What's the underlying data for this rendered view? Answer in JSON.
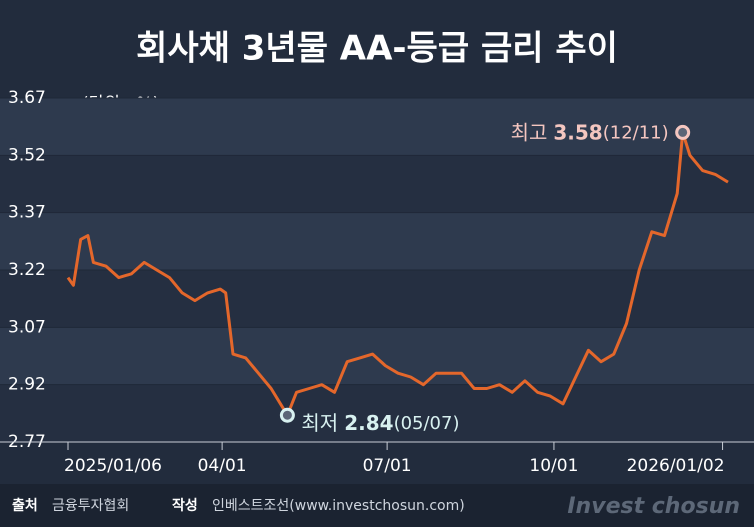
{
  "chart_data": {
    "type": "line",
    "title": "회사채 3년물 AA-등급 금리 추이",
    "unit": "(단위 : %)",
    "x": [
      "2025-01-06",
      "2025-01-09",
      "2025-01-13",
      "2025-01-17",
      "2025-01-20",
      "2025-01-27",
      "2025-02-03",
      "2025-02-10",
      "2025-02-17",
      "2025-02-24",
      "2025-03-03",
      "2025-03-10",
      "2025-03-17",
      "2025-03-24",
      "2025-03-31",
      "2025-04-03",
      "2025-04-07",
      "2025-04-14",
      "2025-04-21",
      "2025-04-28",
      "2025-05-07",
      "2025-05-12",
      "2025-05-19",
      "2025-05-26",
      "2025-06-02",
      "2025-06-09",
      "2025-06-16",
      "2025-06-23",
      "2025-06-30",
      "2025-07-07",
      "2025-07-14",
      "2025-07-21",
      "2025-07-28",
      "2025-08-04",
      "2025-08-11",
      "2025-08-18",
      "2025-08-25",
      "2025-09-01",
      "2025-09-08",
      "2025-09-15",
      "2025-09-22",
      "2025-09-29",
      "2025-10-06",
      "2025-10-13",
      "2025-10-20",
      "2025-10-27",
      "2025-11-03",
      "2025-11-10",
      "2025-11-17",
      "2025-11-24",
      "2025-12-01",
      "2025-12-08",
      "2025-12-11",
      "2025-12-15",
      "2025-12-22",
      "2025-12-29",
      "2026-01-05"
    ],
    "series": [
      {
        "name": "회사채 3년물 AA-",
        "color": "#e4672b",
        "values": [
          3.2,
          3.18,
          3.3,
          3.31,
          3.24,
          3.23,
          3.2,
          3.21,
          3.24,
          3.22,
          3.2,
          3.16,
          3.14,
          3.16,
          3.17,
          3.16,
          3.0,
          2.99,
          2.95,
          2.91,
          2.84,
          2.9,
          2.91,
          2.92,
          2.9,
          2.98,
          2.99,
          3.0,
          2.97,
          2.95,
          2.94,
          2.92,
          2.95,
          2.95,
          2.95,
          2.91,
          2.91,
          2.92,
          2.9,
          2.93,
          2.9,
          2.89,
          2.87,
          2.94,
          3.01,
          2.98,
          3.0,
          3.08,
          3.22,
          3.32,
          3.31,
          3.42,
          3.58,
          3.52,
          3.48,
          3.47,
          3.45
        ]
      }
    ],
    "xlim": [
      "2025-01-06",
      "2026-01-05"
    ],
    "xticks": [
      {
        "value": "2025-01-06",
        "label": "2025/01/06"
      },
      {
        "value": "2025-04-01",
        "label": "04/01"
      },
      {
        "value": "2025-07-01",
        "label": "07/01"
      },
      {
        "value": "2025-10-01",
        "label": "10/01"
      },
      {
        "value": "2026-01-02",
        "label": "2026/01/02"
      }
    ],
    "ylim": [
      2.77,
      3.67
    ],
    "yticks": [
      2.77,
      2.92,
      3.07,
      3.22,
      3.37,
      3.52,
      3.67
    ],
    "annotations": [
      {
        "label": "최고",
        "value": 3.58,
        "date": "(12/11)"
      },
      {
        "label": "최저",
        "value": 2.84,
        "date": "(05/07)"
      }
    ]
  },
  "footer": {
    "source_label": "출처",
    "source": "금융투자협회",
    "author_label": "작성",
    "author": "인베스트조선(www.investchosun.com)",
    "brand": "Invest chosun"
  }
}
